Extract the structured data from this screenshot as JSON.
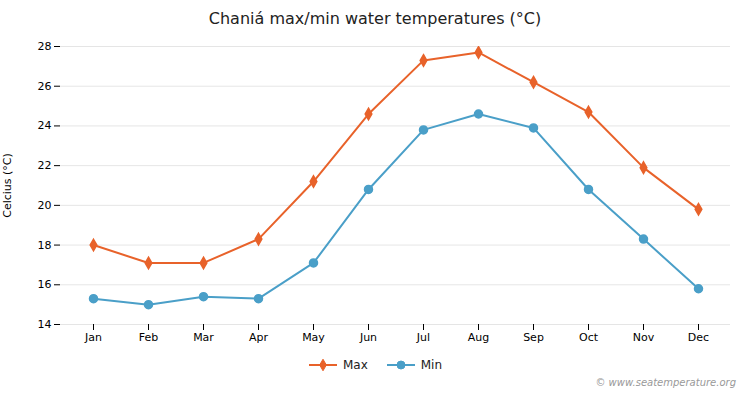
{
  "chart_data": {
    "type": "line",
    "title": "Chaniá max/min water temperatures (°C)",
    "ylabel": "Celcius (°C)",
    "categories": [
      "Jan",
      "Feb",
      "Mar",
      "Apr",
      "May",
      "Jun",
      "Jul",
      "Aug",
      "Sep",
      "Oct",
      "Nov",
      "Dec"
    ],
    "series": [
      {
        "name": "Max",
        "color": "#e8622a",
        "marker": "diamond",
        "values": [
          18.0,
          17.1,
          17.1,
          18.3,
          21.2,
          24.6,
          27.3,
          27.7,
          26.2,
          24.7,
          21.9,
          19.8
        ]
      },
      {
        "name": "Min",
        "color": "#4a9fc8",
        "marker": "circle",
        "values": [
          15.3,
          15.0,
          15.4,
          15.3,
          17.1,
          20.8,
          23.8,
          24.6,
          23.9,
          20.8,
          18.3,
          15.8
        ]
      }
    ],
    "ylim": [
      14,
      28
    ],
    "yticks": [
      14,
      16,
      18,
      20,
      22,
      24,
      26,
      28
    ],
    "grid": true,
    "legend": "bottom",
    "annotations": [
      "© www.seatemperature.org"
    ]
  }
}
